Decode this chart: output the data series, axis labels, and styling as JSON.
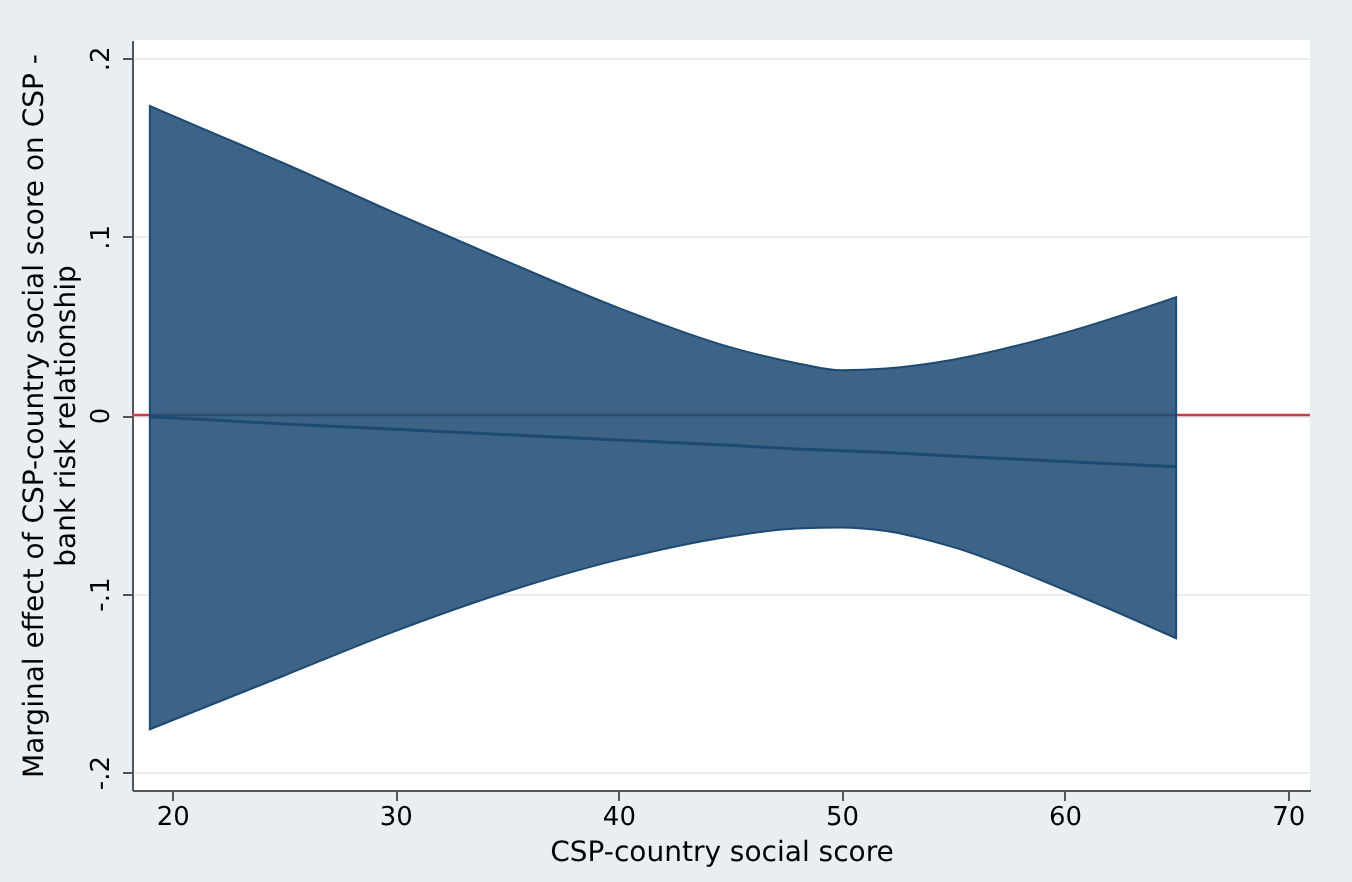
{
  "chart_data": {
    "type": "line",
    "xlabel": "CSP-country social score",
    "ylabel": "Marginal effect of CSP-country social score on CSP -\nbank risk relationship",
    "series": [
      {
        "color": "#1d4a72",
        "x": [
          19,
          22,
          25,
          30,
          35,
          40,
          45,
          48,
          50,
          52,
          55,
          60,
          65
        ],
        "values": [
          -0.001,
          -0.003,
          -0.005,
          -0.008,
          -0.011,
          -0.014,
          -0.017,
          -0.019,
          -0.02,
          -0.021,
          -0.023,
          -0.026,
          -0.029
        ],
        "lower": [
          -0.176,
          -0.161,
          -0.146,
          -0.121,
          -0.099,
          -0.081,
          -0.068,
          -0.0635,
          -0.063,
          -0.065,
          -0.074,
          -0.098,
          -0.125
        ],
        "upper": [
          0.173,
          0.157,
          0.141,
          0.113,
          0.086,
          0.06,
          0.038,
          0.029,
          0.025,
          0.026,
          0.031,
          0.046,
          0.066
        ]
      }
    ],
    "ref_lines": [
      {
        "axis": "y",
        "value": 0,
        "color": "#d03a4a"
      }
    ],
    "xlim": [
      18.2,
      71
    ],
    "xticks": [
      20,
      30,
      40,
      50,
      60,
      70
    ],
    "ylim": [
      -0.21,
      0.21
    ],
    "yticks": [
      {
        "value": -0.2,
        "label": "-.2"
      },
      {
        "value": -0.1,
        "label": "-.1"
      },
      {
        "value": 0,
        "label": "0"
      },
      {
        "value": 0.1,
        "label": ".1"
      },
      {
        "value": 0.2,
        "label": ".2"
      }
    ],
    "grid": "y"
  }
}
